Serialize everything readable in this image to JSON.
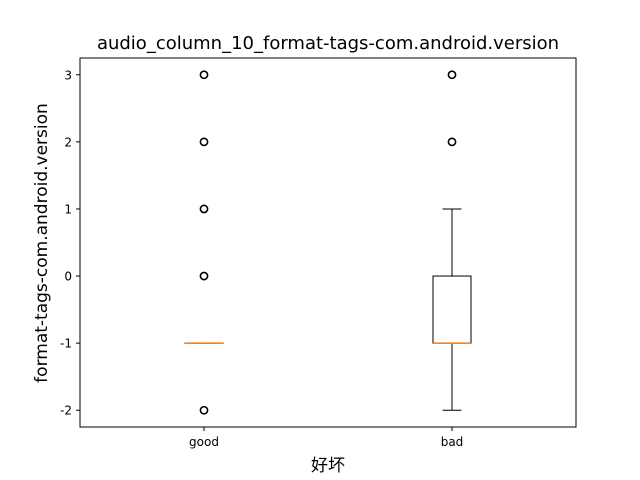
{
  "chart_data": {
    "type": "box",
    "title": "audio_column_10_format-tags-com.android.version",
    "xlabel": "好坏",
    "ylabel": "format-tags-com.android.version",
    "categories": [
      "good",
      "bad"
    ],
    "ylim": [
      -2.25,
      3.25
    ],
    "yticks": [
      -2,
      -1,
      0,
      1,
      2,
      3
    ],
    "grid": false,
    "boxes": [
      {
        "category": "good",
        "q1": -1,
        "median": -1,
        "q3": -1,
        "whisker_low": -1,
        "whisker_high": -1,
        "outliers": [
          -2,
          0,
          1,
          2,
          3
        ]
      },
      {
        "category": "bad",
        "q1": -1,
        "median": -1,
        "q3": 0,
        "whisker_low": -2,
        "whisker_high": 1,
        "outliers": [
          2,
          3
        ]
      }
    ],
    "colors": {
      "box": "#000000",
      "median": "#ff7f0e",
      "outlier": "#000000"
    }
  }
}
